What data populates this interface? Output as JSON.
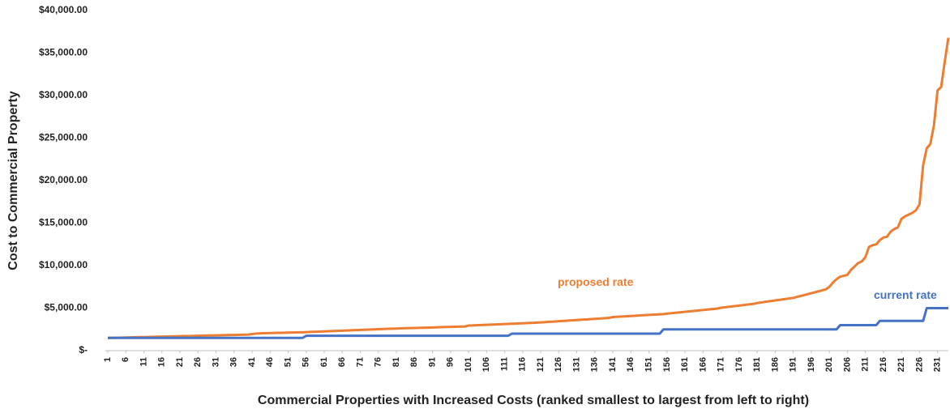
{
  "chart_data": {
    "type": "line",
    "xlabel": "Commercial Properties with Increased Costs (ranked smallest to largest from left to right)",
    "ylabel": "Cost to Commercial Property",
    "annotations": [
      "proposed rate",
      "current rate"
    ],
    "x": [
      1,
      2,
      3,
      4,
      5,
      6,
      7,
      8,
      9,
      10,
      11,
      12,
      13,
      14,
      15,
      16,
      17,
      18,
      19,
      20,
      21,
      22,
      23,
      24,
      25,
      26,
      27,
      28,
      29,
      30,
      31,
      32,
      33,
      34,
      35,
      36,
      37,
      38,
      39,
      40,
      41,
      42,
      43,
      44,
      45,
      46,
      47,
      48,
      49,
      50,
      51,
      52,
      53,
      54,
      55,
      56,
      57,
      58,
      59,
      60,
      61,
      62,
      63,
      64,
      65,
      66,
      67,
      68,
      69,
      70,
      71,
      72,
      73,
      74,
      75,
      76,
      77,
      78,
      79,
      80,
      81,
      82,
      83,
      84,
      85,
      86,
      87,
      88,
      89,
      90,
      91,
      92,
      93,
      94,
      95,
      96,
      97,
      98,
      99,
      100,
      101,
      102,
      103,
      104,
      105,
      106,
      107,
      108,
      109,
      110,
      111,
      112,
      113,
      114,
      115,
      116,
      117,
      118,
      119,
      120,
      121,
      122,
      123,
      124,
      125,
      126,
      127,
      128,
      129,
      130,
      131,
      132,
      133,
      134,
      135,
      136,
      137,
      138,
      139,
      140,
      141,
      142,
      143,
      144,
      145,
      146,
      147,
      148,
      149,
      150,
      151,
      152,
      153,
      154,
      155,
      156,
      157,
      158,
      159,
      160,
      161,
      162,
      163,
      164,
      165,
      166,
      167,
      168,
      169,
      170,
      171,
      172,
      173,
      174,
      175,
      176,
      177,
      178,
      179,
      180,
      181,
      182,
      183,
      184,
      185,
      186,
      187,
      188,
      189,
      190,
      191,
      192,
      193,
      194,
      195,
      196,
      197,
      198,
      199,
      200,
      201,
      202,
      203,
      204,
      205,
      206,
      207,
      208,
      209,
      210,
      211,
      212,
      213,
      214,
      215,
      216,
      217,
      218,
      219,
      220,
      221,
      222,
      223,
      224,
      225,
      226,
      227,
      228,
      229,
      230,
      231,
      232,
      233,
      234
    ],
    "xlim": [
      1,
      234
    ],
    "xticks": [
      1,
      6,
      11,
      16,
      21,
      26,
      31,
      36,
      41,
      46,
      51,
      56,
      61,
      66,
      71,
      76,
      81,
      86,
      91,
      96,
      101,
      106,
      111,
      116,
      121,
      126,
      131,
      136,
      141,
      146,
      151,
      156,
      161,
      166,
      171,
      176,
      181,
      186,
      191,
      196,
      201,
      206,
      211,
      216,
      221,
      226,
      231
    ],
    "ylim": [
      0,
      40000
    ],
    "yticks": [
      {
        "value": 0,
        "label": "$-"
      },
      {
        "value": 5000,
        "label": "$5,000.00"
      },
      {
        "value": 10000,
        "label": "$10,000.00"
      },
      {
        "value": 15000,
        "label": "$15,000.00"
      },
      {
        "value": 20000,
        "label": "$20,000.00"
      },
      {
        "value": 25000,
        "label": "$25,000.00"
      },
      {
        "value": 30000,
        "label": "$30,000.00"
      },
      {
        "value": 35000,
        "label": "$35,000.00"
      },
      {
        "value": 40000,
        "label": "$40,000.00"
      }
    ],
    "grid": false,
    "series": [
      {
        "name": "proposed rate",
        "color": "#ed7d31",
        "values": [
          1500,
          1510,
          1520,
          1530,
          1540,
          1550,
          1560,
          1570,
          1580,
          1590,
          1600,
          1610,
          1620,
          1630,
          1640,
          1650,
          1660,
          1670,
          1680,
          1690,
          1700,
          1710,
          1720,
          1730,
          1740,
          1750,
          1760,
          1770,
          1780,
          1790,
          1800,
          1810,
          1820,
          1830,
          1840,
          1850,
          1860,
          1870,
          1880,
          1890,
          1950,
          2000,
          2030,
          2050,
          2060,
          2070,
          2080,
          2090,
          2100,
          2110,
          2120,
          2130,
          2140,
          2150,
          2160,
          2180,
          2197,
          2214,
          2231,
          2248,
          2265,
          2282,
          2299,
          2316,
          2333,
          2350,
          2367,
          2384,
          2401,
          2418,
          2435,
          2452,
          2469,
          2486,
          2503,
          2520,
          2537,
          2554,
          2571,
          2588,
          2600,
          2613,
          2626,
          2639,
          2652,
          2665,
          2678,
          2691,
          2704,
          2717,
          2730,
          2743,
          2756,
          2769,
          2782,
          2795,
          2808,
          2821,
          2834,
          2847,
          2950,
          2968,
          2986,
          3004,
          3022,
          3040,
          3058,
          3076,
          3094,
          3112,
          3130,
          3148,
          3166,
          3184,
          3202,
          3220,
          3238,
          3256,
          3274,
          3292,
          3320,
          3348,
          3376,
          3404,
          3432,
          3460,
          3488,
          3516,
          3544,
          3572,
          3600,
          3628,
          3656,
          3684,
          3712,
          3740,
          3768,
          3796,
          3824,
          3852,
          3950,
          3975,
          4000,
          4025,
          4050,
          4075,
          4100,
          4125,
          4150,
          4175,
          4200,
          4225,
          4250,
          4275,
          4300,
          4350,
          4393,
          4436,
          4479,
          4522,
          4565,
          4608,
          4651,
          4694,
          4737,
          4780,
          4823,
          4866,
          4909,
          4952,
          5050,
          5100,
          5150,
          5200,
          5250,
          5300,
          5350,
          5400,
          5450,
          5500,
          5600,
          5661,
          5722,
          5783,
          5844,
          5905,
          5966,
          6027,
          6088,
          6149,
          6200,
          6311,
          6422,
          6533,
          6644,
          6755,
          6866,
          6977,
          7088,
          7199,
          7500,
          8000,
          8400,
          8700,
          8800,
          8900,
          9500,
          9900,
          10300,
          10500,
          11000,
          12200,
          12400,
          12500,
          13000,
          13300,
          13400,
          14000,
          14300,
          14500,
          15500,
          15800,
          16000,
          16200,
          16500,
          17200,
          21800,
          23800,
          24300,
          26500,
          30600,
          31000,
          34000,
          36800
        ]
      },
      {
        "name": "current rate",
        "color": "#4472c4",
        "values": [
          1500,
          1500,
          1500,
          1500,
          1500,
          1500,
          1500,
          1500,
          1500,
          1500,
          1500,
          1500,
          1500,
          1500,
          1500,
          1500,
          1500,
          1500,
          1500,
          1500,
          1500,
          1500,
          1500,
          1500,
          1500,
          1500,
          1500,
          1500,
          1500,
          1500,
          1500,
          1500,
          1500,
          1500,
          1500,
          1500,
          1500,
          1500,
          1500,
          1500,
          1500,
          1500,
          1500,
          1500,
          1500,
          1500,
          1500,
          1500,
          1500,
          1500,
          1500,
          1500,
          1500,
          1500,
          1500,
          1750,
          1750,
          1750,
          1750,
          1750,
          1750,
          1750,
          1750,
          1750,
          1750,
          1750,
          1750,
          1750,
          1750,
          1750,
          1750,
          1750,
          1750,
          1750,
          1750,
          1750,
          1750,
          1750,
          1750,
          1750,
          1750,
          1750,
          1750,
          1750,
          1750,
          1750,
          1750,
          1750,
          1750,
          1750,
          1750,
          1750,
          1750,
          1750,
          1750,
          1750,
          1750,
          1750,
          1750,
          1750,
          1750,
          1750,
          1750,
          1750,
          1750,
          1750,
          1750,
          1750,
          1750,
          1750,
          1750,
          1750,
          2000,
          2000,
          2000,
          2000,
          2000,
          2000,
          2000,
          2000,
          2000,
          2000,
          2000,
          2000,
          2000,
          2000,
          2000,
          2000,
          2000,
          2000,
          2000,
          2000,
          2000,
          2000,
          2000,
          2000,
          2000,
          2000,
          2000,
          2000,
          2000,
          2000,
          2000,
          2000,
          2000,
          2000,
          2000,
          2000,
          2000,
          2000,
          2000,
          2000,
          2000,
          2000,
          2500,
          2500,
          2500,
          2500,
          2500,
          2500,
          2500,
          2500,
          2500,
          2500,
          2500,
          2500,
          2500,
          2500,
          2500,
          2500,
          2500,
          2500,
          2500,
          2500,
          2500,
          2500,
          2500,
          2500,
          2500,
          2500,
          2500,
          2500,
          2500,
          2500,
          2500,
          2500,
          2500,
          2500,
          2500,
          2500,
          2500,
          2500,
          2500,
          2500,
          2500,
          2500,
          2500,
          2500,
          2500,
          2500,
          2500,
          2500,
          2500,
          3000,
          3000,
          3000,
          3000,
          3000,
          3000,
          3000,
          3000,
          3000,
          3000,
          3000,
          3500,
          3500,
          3500,
          3500,
          3500,
          3500,
          3500,
          3500,
          3500,
          3500,
          3500,
          3500,
          3500,
          5000,
          5000,
          5000,
          5000,
          5000,
          5000,
          5000
        ]
      }
    ]
  }
}
